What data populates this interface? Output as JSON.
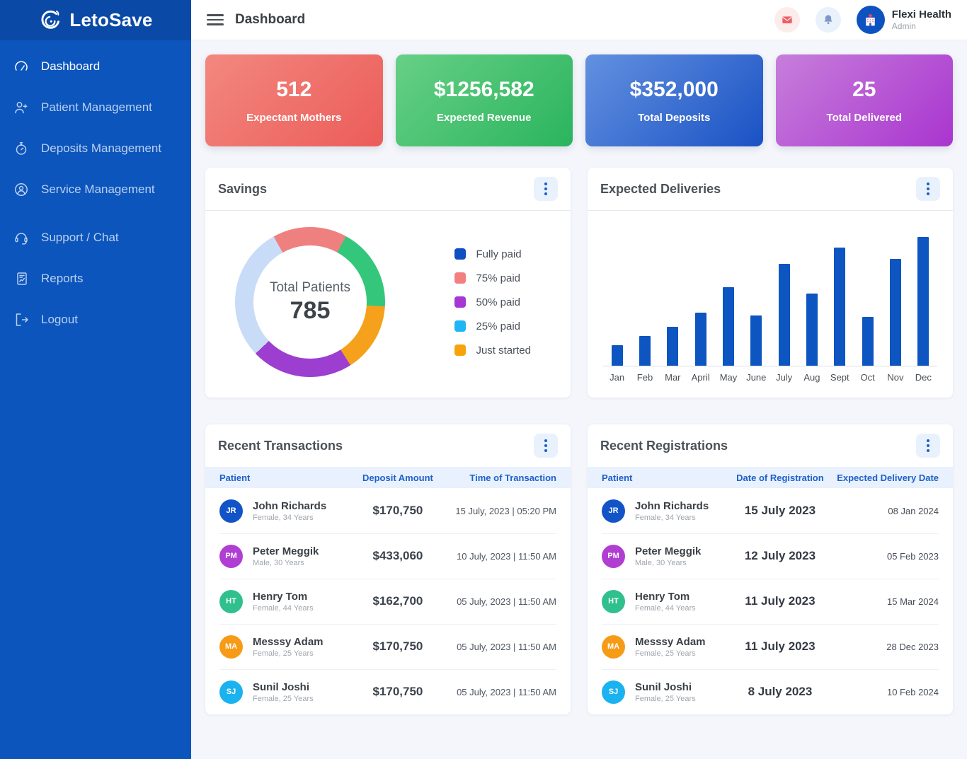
{
  "sidebar": {
    "logo_text": "LetoSave",
    "items": [
      {
        "label": "Dashboard",
        "icon": "dashboard-icon",
        "active": true,
        "gap_before": false
      },
      {
        "label": "Patient Management",
        "icon": "patient-management-icon",
        "active": false,
        "gap_before": false
      },
      {
        "label": "Deposits Management",
        "icon": "deposits-management-icon",
        "active": false,
        "gap_before": false
      },
      {
        "label": "Service Management",
        "icon": "service-management-icon",
        "active": false,
        "gap_before": false
      },
      {
        "label": "Support / Chat",
        "icon": "support-chat-icon",
        "active": false,
        "gap_before": true
      },
      {
        "label": "Reports",
        "icon": "reports-icon",
        "active": false,
        "gap_before": false
      },
      {
        "label": "Logout",
        "icon": "logout-icon",
        "active": false,
        "gap_before": false
      }
    ]
  },
  "header": {
    "title": "Dashboard",
    "user_name": "Flexi Health",
    "user_role": "Admin"
  },
  "stat_cards": [
    {
      "value": "512",
      "label": "Expectant Mothers",
      "gradient": [
        "#f2887f",
        "#ec5c59"
      ]
    },
    {
      "value": "$1256,582",
      "label": "Expected Revenue",
      "gradient": [
        "#67d086",
        "#2ab45d"
      ]
    },
    {
      "value": "$352,000",
      "label": "Total Deposits",
      "gradient": [
        "#6391e0",
        "#1a52c4"
      ]
    },
    {
      "value": "25",
      "label": "Total Delivered",
      "gradient": [
        "#c77edb",
        "#a935cf"
      ]
    }
  ],
  "chart_data": [
    {
      "type": "pie",
      "title": "Savings",
      "center_label": "Total Patients",
      "center_value": "785",
      "start_angle_deg": 331,
      "segments": [
        {
          "label": "75% paid",
          "color": "#ef8080",
          "percent": 16
        },
        {
          "label": "Fully paid",
          "color": "#34c77b",
          "percent": 18
        },
        {
          "label": "Just started",
          "color": "#f5a11c",
          "percent": 15
        },
        {
          "label": "50% paid",
          "color": "#9c3ecf",
          "percent": 22
        },
        {
          "label": "25% paid",
          "color": "#c8dbf7",
          "percent": 29
        }
      ],
      "legend": [
        {
          "label": "Fully paid",
          "color": "#0e4fc1"
        },
        {
          "label": "75% paid",
          "color": "#f28080"
        },
        {
          "label": "50% paid",
          "color": "#a637d4"
        },
        {
          "label": "25% paid",
          "color": "#1fb6f5"
        },
        {
          "label": "Just started",
          "color": "#f7a30b"
        }
      ],
      "legend_position": "right"
    },
    {
      "type": "bar",
      "title": "Expected Deliveries",
      "categories": [
        "Jan",
        "Feb",
        "Mar",
        "April",
        "May",
        "June",
        "July",
        "Aug",
        "Sept",
        "Oct",
        "Nov",
        "Dec"
      ],
      "values": [
        16,
        23,
        30,
        41,
        61,
        39,
        79,
        56,
        92,
        38,
        83,
        100
      ],
      "bar_color": "#0d55c0",
      "ylim": [
        0,
        100
      ],
      "grid": false,
      "xlabel": "",
      "ylabel": ""
    }
  ],
  "transactions": {
    "title": "Recent Transactions",
    "columns": [
      "Patient",
      "Deposit Amount",
      "Time of Transaction"
    ],
    "rows": [
      {
        "initials": "JR",
        "avatar_color": "#1254c8",
        "name": "John Richards",
        "meta": "Female, 34 Years",
        "amount": "$170,750",
        "time": "15 July, 2023  |  05:20 PM"
      },
      {
        "initials": "PM",
        "avatar_color": "#b13ed3",
        "name": "Peter Meggik",
        "meta": "Male, 30 Years",
        "amount": "$433,060",
        "time": "10 July, 2023  |  11:50 AM"
      },
      {
        "initials": "HT",
        "avatar_color": "#2fc08e",
        "name": "Henry Tom",
        "meta": "Female, 44 Years",
        "amount": "$162,700",
        "time": "05 July, 2023  |  11:50 AM"
      },
      {
        "initials": "MA",
        "avatar_color": "#f79b16",
        "name": "Messsy Adam",
        "meta": "Female, 25 Years",
        "amount": "$170,750",
        "time": "05 July, 2023  |  11:50 AM"
      },
      {
        "initials": "SJ",
        "avatar_color": "#1ab2ef",
        "name": "Sunil Joshi",
        "meta": "Female, 25 Years",
        "amount": "$170,750",
        "time": "05 July, 2023  |  11:50 AM"
      }
    ]
  },
  "registrations": {
    "title": "Recent Registrations",
    "columns": [
      "Patient",
      "Date of Registration",
      "Expected Delivery Date"
    ],
    "rows": [
      {
        "initials": "JR",
        "avatar_color": "#1254c8",
        "name": "John Richards",
        "meta": "Female, 34 Years",
        "date": "15 July 2023",
        "expected": "08 Jan 2024"
      },
      {
        "initials": "PM",
        "avatar_color": "#b13ed3",
        "name": "Peter Meggik",
        "meta": "Male, 30 Years",
        "date": "12 July 2023",
        "expected": "05 Feb 2023"
      },
      {
        "initials": "HT",
        "avatar_color": "#2fc08e",
        "name": "Henry Tom",
        "meta": "Female, 44 Years",
        "date": "11 July 2023",
        "expected": "15 Mar 2024"
      },
      {
        "initials": "MA",
        "avatar_color": "#f79b16",
        "name": "Messsy Adam",
        "meta": "Female, 25 Years",
        "date": "11 July 2023",
        "expected": "28 Dec 2023"
      },
      {
        "initials": "SJ",
        "avatar_color": "#1ab2ef",
        "name": "Sunil Joshi",
        "meta": "Female, 25 Years",
        "date": "8 July 2023",
        "expected": "10 Feb 2024"
      }
    ]
  }
}
